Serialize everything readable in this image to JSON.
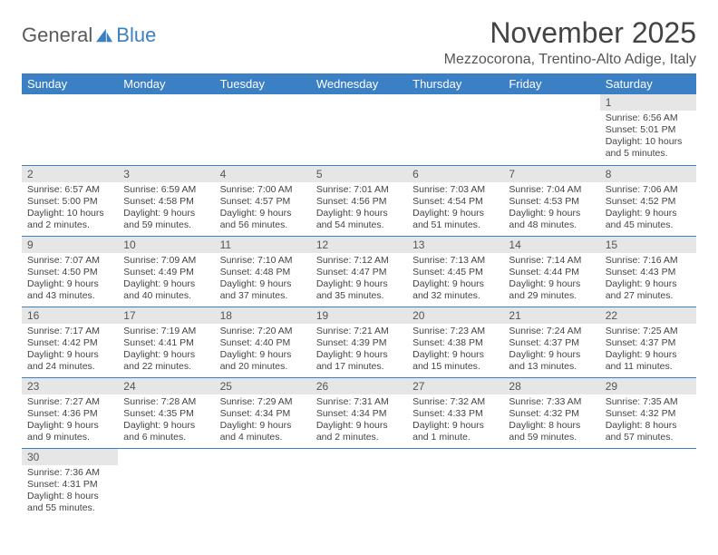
{
  "logo": {
    "text1": "General",
    "text2": "Blue"
  },
  "title": "November 2025",
  "location": "Mezzocorona, Trentino-Alto Adige, Italy",
  "colors": {
    "header_bg": "#3b7fc4",
    "header_text": "#ffffff",
    "daynum_bg": "#e6e6e6",
    "cell_border": "#3b7fc4",
    "body_text": "#444444"
  },
  "dayHeaders": [
    "Sunday",
    "Monday",
    "Tuesday",
    "Wednesday",
    "Thursday",
    "Friday",
    "Saturday"
  ],
  "weeks": [
    [
      null,
      null,
      null,
      null,
      null,
      null,
      {
        "n": "1",
        "sr": "Sunrise: 6:56 AM",
        "ss": "Sunset: 5:01 PM",
        "dl1": "Daylight: 10 hours",
        "dl2": "and 5 minutes."
      }
    ],
    [
      {
        "n": "2",
        "sr": "Sunrise: 6:57 AM",
        "ss": "Sunset: 5:00 PM",
        "dl1": "Daylight: 10 hours",
        "dl2": "and 2 minutes."
      },
      {
        "n": "3",
        "sr": "Sunrise: 6:59 AM",
        "ss": "Sunset: 4:58 PM",
        "dl1": "Daylight: 9 hours",
        "dl2": "and 59 minutes."
      },
      {
        "n": "4",
        "sr": "Sunrise: 7:00 AM",
        "ss": "Sunset: 4:57 PM",
        "dl1": "Daylight: 9 hours",
        "dl2": "and 56 minutes."
      },
      {
        "n": "5",
        "sr": "Sunrise: 7:01 AM",
        "ss": "Sunset: 4:56 PM",
        "dl1": "Daylight: 9 hours",
        "dl2": "and 54 minutes."
      },
      {
        "n": "6",
        "sr": "Sunrise: 7:03 AM",
        "ss": "Sunset: 4:54 PM",
        "dl1": "Daylight: 9 hours",
        "dl2": "and 51 minutes."
      },
      {
        "n": "7",
        "sr": "Sunrise: 7:04 AM",
        "ss": "Sunset: 4:53 PM",
        "dl1": "Daylight: 9 hours",
        "dl2": "and 48 minutes."
      },
      {
        "n": "8",
        "sr": "Sunrise: 7:06 AM",
        "ss": "Sunset: 4:52 PM",
        "dl1": "Daylight: 9 hours",
        "dl2": "and 45 minutes."
      }
    ],
    [
      {
        "n": "9",
        "sr": "Sunrise: 7:07 AM",
        "ss": "Sunset: 4:50 PM",
        "dl1": "Daylight: 9 hours",
        "dl2": "and 43 minutes."
      },
      {
        "n": "10",
        "sr": "Sunrise: 7:09 AM",
        "ss": "Sunset: 4:49 PM",
        "dl1": "Daylight: 9 hours",
        "dl2": "and 40 minutes."
      },
      {
        "n": "11",
        "sr": "Sunrise: 7:10 AM",
        "ss": "Sunset: 4:48 PM",
        "dl1": "Daylight: 9 hours",
        "dl2": "and 37 minutes."
      },
      {
        "n": "12",
        "sr": "Sunrise: 7:12 AM",
        "ss": "Sunset: 4:47 PM",
        "dl1": "Daylight: 9 hours",
        "dl2": "and 35 minutes."
      },
      {
        "n": "13",
        "sr": "Sunrise: 7:13 AM",
        "ss": "Sunset: 4:45 PM",
        "dl1": "Daylight: 9 hours",
        "dl2": "and 32 minutes."
      },
      {
        "n": "14",
        "sr": "Sunrise: 7:14 AM",
        "ss": "Sunset: 4:44 PM",
        "dl1": "Daylight: 9 hours",
        "dl2": "and 29 minutes."
      },
      {
        "n": "15",
        "sr": "Sunrise: 7:16 AM",
        "ss": "Sunset: 4:43 PM",
        "dl1": "Daylight: 9 hours",
        "dl2": "and 27 minutes."
      }
    ],
    [
      {
        "n": "16",
        "sr": "Sunrise: 7:17 AM",
        "ss": "Sunset: 4:42 PM",
        "dl1": "Daylight: 9 hours",
        "dl2": "and 24 minutes."
      },
      {
        "n": "17",
        "sr": "Sunrise: 7:19 AM",
        "ss": "Sunset: 4:41 PM",
        "dl1": "Daylight: 9 hours",
        "dl2": "and 22 minutes."
      },
      {
        "n": "18",
        "sr": "Sunrise: 7:20 AM",
        "ss": "Sunset: 4:40 PM",
        "dl1": "Daylight: 9 hours",
        "dl2": "and 20 minutes."
      },
      {
        "n": "19",
        "sr": "Sunrise: 7:21 AM",
        "ss": "Sunset: 4:39 PM",
        "dl1": "Daylight: 9 hours",
        "dl2": "and 17 minutes."
      },
      {
        "n": "20",
        "sr": "Sunrise: 7:23 AM",
        "ss": "Sunset: 4:38 PM",
        "dl1": "Daylight: 9 hours",
        "dl2": "and 15 minutes."
      },
      {
        "n": "21",
        "sr": "Sunrise: 7:24 AM",
        "ss": "Sunset: 4:37 PM",
        "dl1": "Daylight: 9 hours",
        "dl2": "and 13 minutes."
      },
      {
        "n": "22",
        "sr": "Sunrise: 7:25 AM",
        "ss": "Sunset: 4:37 PM",
        "dl1": "Daylight: 9 hours",
        "dl2": "and 11 minutes."
      }
    ],
    [
      {
        "n": "23",
        "sr": "Sunrise: 7:27 AM",
        "ss": "Sunset: 4:36 PM",
        "dl1": "Daylight: 9 hours",
        "dl2": "and 9 minutes."
      },
      {
        "n": "24",
        "sr": "Sunrise: 7:28 AM",
        "ss": "Sunset: 4:35 PM",
        "dl1": "Daylight: 9 hours",
        "dl2": "and 6 minutes."
      },
      {
        "n": "25",
        "sr": "Sunrise: 7:29 AM",
        "ss": "Sunset: 4:34 PM",
        "dl1": "Daylight: 9 hours",
        "dl2": "and 4 minutes."
      },
      {
        "n": "26",
        "sr": "Sunrise: 7:31 AM",
        "ss": "Sunset: 4:34 PM",
        "dl1": "Daylight: 9 hours",
        "dl2": "and 2 minutes."
      },
      {
        "n": "27",
        "sr": "Sunrise: 7:32 AM",
        "ss": "Sunset: 4:33 PM",
        "dl1": "Daylight: 9 hours",
        "dl2": "and 1 minute."
      },
      {
        "n": "28",
        "sr": "Sunrise: 7:33 AM",
        "ss": "Sunset: 4:32 PM",
        "dl1": "Daylight: 8 hours",
        "dl2": "and 59 minutes."
      },
      {
        "n": "29",
        "sr": "Sunrise: 7:35 AM",
        "ss": "Sunset: 4:32 PM",
        "dl1": "Daylight: 8 hours",
        "dl2": "and 57 minutes."
      }
    ],
    [
      {
        "n": "30",
        "sr": "Sunrise: 7:36 AM",
        "ss": "Sunset: 4:31 PM",
        "dl1": "Daylight: 8 hours",
        "dl2": "and 55 minutes."
      },
      null,
      null,
      null,
      null,
      null,
      null
    ]
  ]
}
